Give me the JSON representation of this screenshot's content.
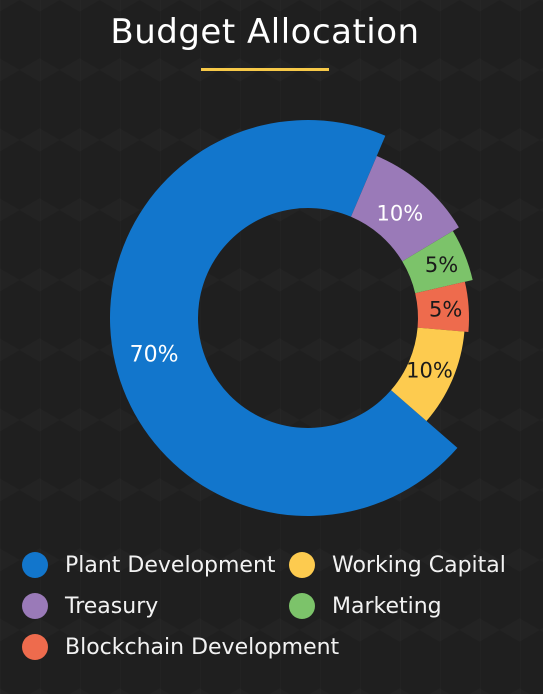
{
  "chart_data": {
    "type": "pie",
    "title": "Budget Allocation",
    "categories": [
      "Plant Development",
      "Treasury",
      "Marketing",
      "Blockchain Development",
      "Working Capital"
    ],
    "values": [
      70,
      10,
      5,
      5,
      10
    ],
    "value_labels": [
      "70%",
      "10%",
      "5%",
      "5%",
      "10%"
    ],
    "colors": [
      "#1276cc",
      "#9a7ab8",
      "#7cc36a",
      "#ee6b4d",
      "#fdcb4f"
    ],
    "donut": true,
    "legend_position": "bottom"
  },
  "colors": {
    "background": "#1f1f1f",
    "accent": "#f7c948",
    "text": "#ffffff"
  },
  "legend": {
    "items": [
      {
        "label": "Plant Development",
        "color": "#1276cc"
      },
      {
        "label": "Working Capital",
        "color": "#fdcb4f"
      },
      {
        "label": "Treasury",
        "color": "#9a7ab8"
      },
      {
        "label": "Marketing",
        "color": "#7cc36a"
      },
      {
        "label": "Blockchain Development",
        "color": "#ee6b4d"
      }
    ]
  }
}
